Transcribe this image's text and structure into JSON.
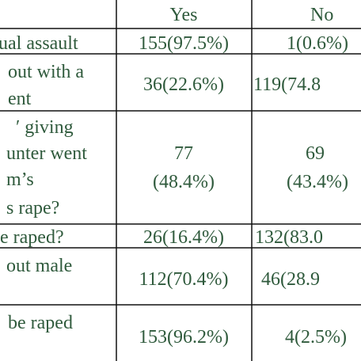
{
  "table": {
    "header": [
      "Yes",
      "No"
    ],
    "rows": [
      [
        [
          "ual assault"
        ],
        [
          "155(97.5%)"
        ],
        [
          "1(0.6%)"
        ]
      ],
      [
        [
          "out with a",
          "ent"
        ],
        [
          "36(22.6%)"
        ],
        [
          "119(74.8"
        ]
      ],
      [
        [
          "′ giving",
          "unter went",
          "m’s",
          "s rape?"
        ],
        [
          "77",
          "(48.4%)"
        ],
        [
          "69",
          "(43.4%)"
        ]
      ],
      [
        [
          "e raped?"
        ],
        [
          "26(16.4%)"
        ],
        [
          "132(83.0"
        ]
      ],
      [
        [
          "out male"
        ],
        [
          "112(70.4%)"
        ],
        [
          "46(28.9"
        ]
      ],
      [
        [
          "be raped"
        ],
        [
          "153(96.2%)"
        ],
        [
          "4(2.5%)"
        ]
      ]
    ]
  }
}
